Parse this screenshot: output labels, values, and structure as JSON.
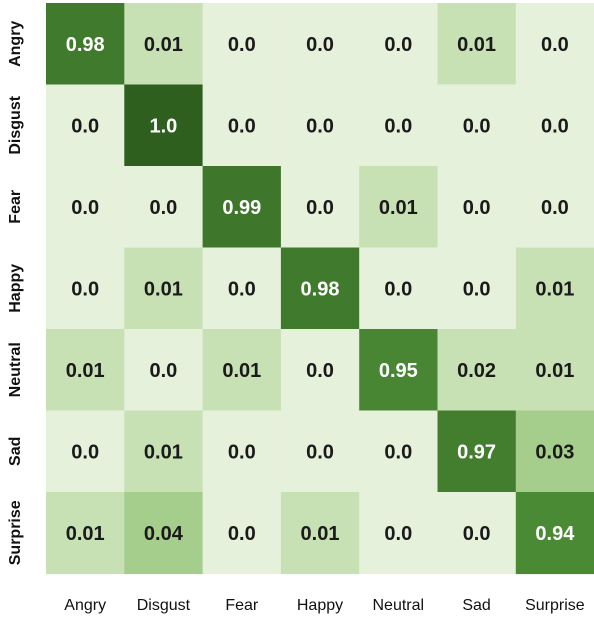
{
  "chart_data": {
    "type": "heatmap",
    "title": "",
    "xlabel": "",
    "ylabel": "",
    "row_labels": [
      "Angry",
      "Disgust",
      "Fear",
      "Happy",
      "Neutral",
      "Sad",
      "Surprise"
    ],
    "col_labels": [
      "Angry",
      "Disgust",
      "Fear",
      "Happy",
      "Neutral",
      "Sad",
      "Surprise"
    ],
    "values": [
      [
        "0.98",
        "0.01",
        "0.0",
        "0.0",
        "0.0",
        "0.01",
        "0.0"
      ],
      [
        "0.0",
        "1.0",
        "0.0",
        "0.0",
        "0.0",
        "0.0",
        "0.0"
      ],
      [
        "0.0",
        "0.0",
        "0.99",
        "0.0",
        "0.01",
        "0.0",
        "0.0"
      ],
      [
        "0.0",
        "0.01",
        "0.0",
        "0.98",
        "0.0",
        "0.0",
        "0.01"
      ],
      [
        "0.01",
        "0.0",
        "0.01",
        "0.0",
        "0.95",
        "0.02",
        "0.01"
      ],
      [
        "0.0",
        "0.01",
        "0.0",
        "0.0",
        "0.0",
        "0.97",
        "0.03"
      ],
      [
        "0.01",
        "0.04",
        "0.0",
        "0.01",
        "0.0",
        "0.0",
        "0.94"
      ]
    ],
    "vmin": 0,
    "vmax": 1,
    "colors": {
      "low": "#e6f1dc",
      "mid_low": "#c7e1b5",
      "mid": "#a5cd8c",
      "high": "#4b8a35",
      "max": "#2e5f1f",
      "text_light": "#ffffff",
      "text_dark": "#1a1a1a"
    }
  }
}
